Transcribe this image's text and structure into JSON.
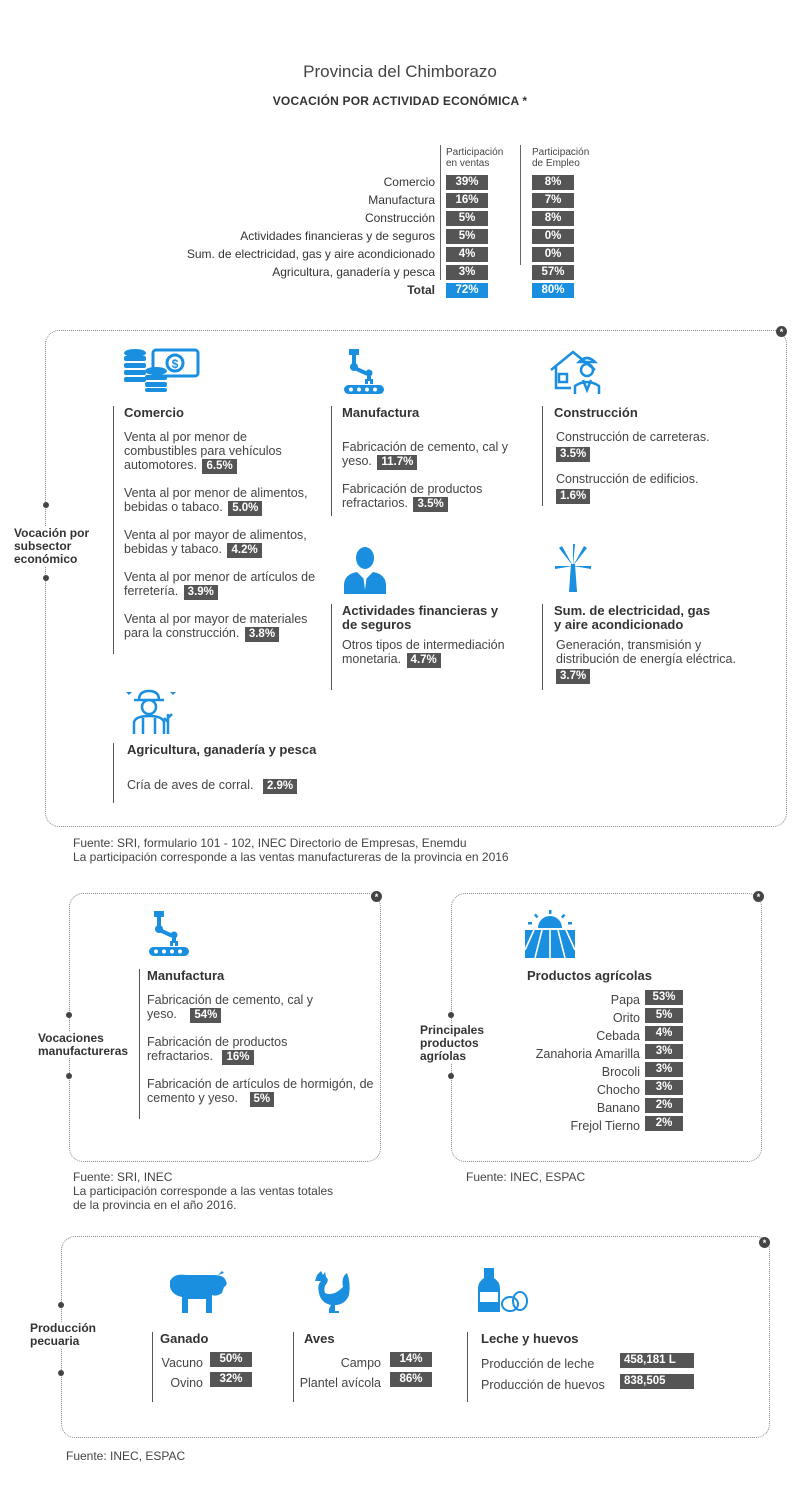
{
  "header": {
    "title": "Provincia del  Chimborazo",
    "subtitle": "VOCACIÓN POR ACTIVIDAD ECONÓMICA *"
  },
  "summary": {
    "col1_head_1": "Participación",
    "col1_head_2": "en ventas",
    "col2_head_1": "Participación",
    "col2_head_2": "de Empleo",
    "rows": [
      {
        "label": "Comercio",
        "ventas": "39%",
        "empleo": "8%"
      },
      {
        "label": "Manufactura",
        "ventas": "16%",
        "empleo": "7%"
      },
      {
        "label": "Construcción",
        "ventas": "5%",
        "empleo": "8%"
      },
      {
        "label": "Actividades financieras y de seguros",
        "ventas": "5%",
        "empleo": "0%"
      },
      {
        "label": "Sum. de electricidad, gas y aire acondicionado",
        "ventas": "4%",
        "empleo": "0%"
      },
      {
        "label": "Agricultura, ganadería y pesca",
        "ventas": "3%",
        "empleo": "57%"
      }
    ],
    "total": {
      "label": "Total",
      "ventas": "72%",
      "empleo": "80%"
    }
  },
  "subsector": {
    "corner": "*",
    "side_label_1": "Vocación por",
    "side_label_2": "subsector",
    "side_label_3": "económico",
    "comercio": {
      "title": "Comercio",
      "items": [
        {
          "text": "Venta al por menor de combustibles para vehículos automotores.",
          "value": "6.5%"
        },
        {
          "text": "Venta al por menor de alimentos, bebidas o tabaco.",
          "value": "5.0%"
        },
        {
          "text": "Venta al por mayor de alimentos, bebidas y tabaco.",
          "value": "4.2%"
        },
        {
          "text": "Venta al por menor de artículos de ferretería.",
          "value": "3.9%"
        },
        {
          "text": "Venta al por mayor de materiales para la construcción.",
          "value": "3.8%"
        }
      ]
    },
    "manufactura": {
      "title": "Manufactura",
      "items": [
        {
          "text": "Fabricación de cemento, cal y yeso.",
          "value": "11.7%"
        },
        {
          "text": "Fabricación de productos refractarios.",
          "value": "3.5%"
        }
      ]
    },
    "construccion": {
      "title": "Construcción",
      "items": [
        {
          "text": "Construcción de carreteras.",
          "value": "3.5%"
        },
        {
          "text": "Construcción de edificios.",
          "value": "1.6%"
        }
      ]
    },
    "financieras": {
      "title_1": "Actividades financieras y",
      "title_2": "de seguros",
      "items": [
        {
          "text": "Otros tipos de intermediación monetaria.",
          "value": "4.7%"
        }
      ]
    },
    "electricidad": {
      "title_1": "Sum. de electricidad, gas",
      "title_2": "y aire acondicionado",
      "items": [
        {
          "text": "Generación, transmisión y distribución de energía eléctrica.",
          "value": "3.7%"
        }
      ]
    },
    "agricultura": {
      "title": "Agricultura, ganadería y pesca",
      "items": [
        {
          "text": "Cría de aves de corral.",
          "value": "2.9%"
        }
      ]
    },
    "source_1": "Fuente: SRI, formulario 101 - 102, INEC Directorio de Empresas, Enemdu",
    "source_2": "La participación corresponde a las ventas manufactureras de la provincia en 2016"
  },
  "manufactureras": {
    "corner": "*",
    "side_label_1": "Vocaciones",
    "side_label_2": "manufactureras",
    "title": "Manufactura",
    "items": [
      {
        "text": "Fabricación de cemento, cal y yeso.",
        "value": "54%"
      },
      {
        "text": "Fabricación de productos refractarios.",
        "value": "16%"
      },
      {
        "text": "Fabricación de artículos de hormigón, de cemento y yeso.",
        "value": "5%"
      }
    ],
    "source_1": "Fuente: SRI, INEC",
    "source_2": "La participación corresponde a las ventas totales",
    "source_3": "de la provincia en el año 2016."
  },
  "agricolas": {
    "corner": "*",
    "side_label_1": "Principales",
    "side_label_2": "productos",
    "side_label_3": "agríolas",
    "title": "Productos agrícolas",
    "items": [
      {
        "label": "Papa",
        "value": "53%"
      },
      {
        "label": "Orito",
        "value": "5%"
      },
      {
        "label": "Cebada",
        "value": "4%"
      },
      {
        "label": "Zanahoria Amarilla",
        "value": "3%"
      },
      {
        "label": "Brocoli",
        "value": "3%"
      },
      {
        "label": "Chocho",
        "value": "3%"
      },
      {
        "label": "Banano",
        "value": "2%"
      },
      {
        "label": "Frejol Tierno",
        "value": "2%"
      }
    ],
    "source": "Fuente: INEC, ESPAC"
  },
  "pecuaria": {
    "corner": "*",
    "side_label_1": "Producción",
    "side_label_2": "pecuaria",
    "ganado": {
      "title": "Ganado",
      "items": [
        {
          "label": "Vacuno",
          "value": "50%"
        },
        {
          "label": "Ovino",
          "value": "32%"
        }
      ]
    },
    "aves": {
      "title": "Aves",
      "items": [
        {
          "label": "Campo",
          "value": "14%"
        },
        {
          "label": "Plantel avícola",
          "value": "86%"
        }
      ]
    },
    "leche": {
      "title": "Leche y huevos",
      "items": [
        {
          "label": "Producción de leche",
          "value": "458,181 L"
        },
        {
          "label": "Producción de huevos",
          "value": "838,505"
        }
      ]
    },
    "source": "Fuente: INEC, ESPAC"
  },
  "colors": {
    "accent": "#1a8fe0",
    "badge": "#555555"
  },
  "icons": [
    "coins-money-icon",
    "robot-arm-conveyor-icon",
    "builder-house-icon",
    "businessman-icon",
    "power-tower-icon",
    "farmer-icon",
    "sun-field-icon",
    "cow-icon",
    "rooster-icon",
    "milk-eggs-icon"
  ]
}
